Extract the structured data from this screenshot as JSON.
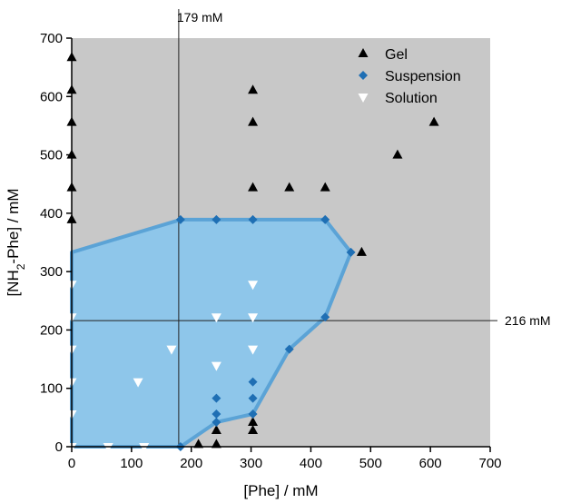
{
  "chart_data": {
    "type": "scatter",
    "xlabel": "[Phe] / mM",
    "ylabel_parts": [
      "[NH",
      "2",
      "-Phe] / mM"
    ],
    "xlim": [
      0,
      700
    ],
    "ylim": [
      0,
      700
    ],
    "xticks": [
      0,
      100,
      200,
      300,
      400,
      500,
      600,
      700
    ],
    "yticks": [
      0,
      100,
      200,
      300,
      400,
      500,
      600,
      700
    ],
    "background_color": "#c8c8c8",
    "legend_position": "top-right",
    "series": [
      {
        "name": "Gel",
        "marker": "triangle-up",
        "color": "#000000",
        "points": [
          [
            0,
            667
          ],
          [
            0,
            611
          ],
          [
            0,
            556
          ],
          [
            0,
            500
          ],
          [
            0,
            444
          ],
          [
            0,
            389
          ],
          [
            212,
            4
          ],
          [
            242,
            4
          ],
          [
            242,
            28
          ],
          [
            303,
            28
          ],
          [
            303,
            42
          ],
          [
            303,
            444
          ],
          [
            303,
            556
          ],
          [
            303,
            611
          ],
          [
            364,
            444
          ],
          [
            424,
            444
          ],
          [
            485,
            333
          ],
          [
            545,
            500
          ],
          [
            606,
            556
          ]
        ]
      },
      {
        "name": "Suspension",
        "marker": "diamond",
        "color": "#1f6fb4",
        "points": [
          [
            182,
            389
          ],
          [
            242,
            389
          ],
          [
            303,
            389
          ],
          [
            424,
            389
          ],
          [
            467,
            333
          ],
          [
            424,
            222
          ],
          [
            364,
            167
          ],
          [
            303,
            111
          ],
          [
            303,
            83
          ],
          [
            303,
            56
          ],
          [
            242,
            83
          ],
          [
            242,
            56
          ],
          [
            242,
            42
          ],
          [
            182,
            0
          ]
        ]
      },
      {
        "name": "Solution",
        "marker": "triangle-down",
        "color": "#ffffff",
        "points": [
          [
            0,
            278
          ],
          [
            0,
            222
          ],
          [
            0,
            167
          ],
          [
            0,
            111
          ],
          [
            0,
            56
          ],
          [
            0,
            0
          ],
          [
            61,
            0
          ],
          [
            121,
            0
          ],
          [
            167,
            167
          ],
          [
            111,
            111
          ],
          [
            242,
            222
          ],
          [
            242,
            139
          ],
          [
            303,
            278
          ],
          [
            303,
            222
          ],
          [
            303,
            167
          ]
        ]
      }
    ],
    "region": {
      "fill": "#8ec6ea",
      "stroke": "#5ba3d6",
      "polygon": [
        [
          0,
          0
        ],
        [
          182,
          0
        ],
        [
          242,
          42
        ],
        [
          303,
          56
        ],
        [
          364,
          167
        ],
        [
          424,
          222
        ],
        [
          467,
          333
        ],
        [
          424,
          389
        ],
        [
          182,
          389
        ],
        [
          0,
          333
        ]
      ]
    },
    "reference_lines": [
      {
        "axis": "x",
        "value": 179,
        "label": "179 mM"
      },
      {
        "axis": "y",
        "value": 216,
        "label": "216 mM"
      }
    ]
  }
}
